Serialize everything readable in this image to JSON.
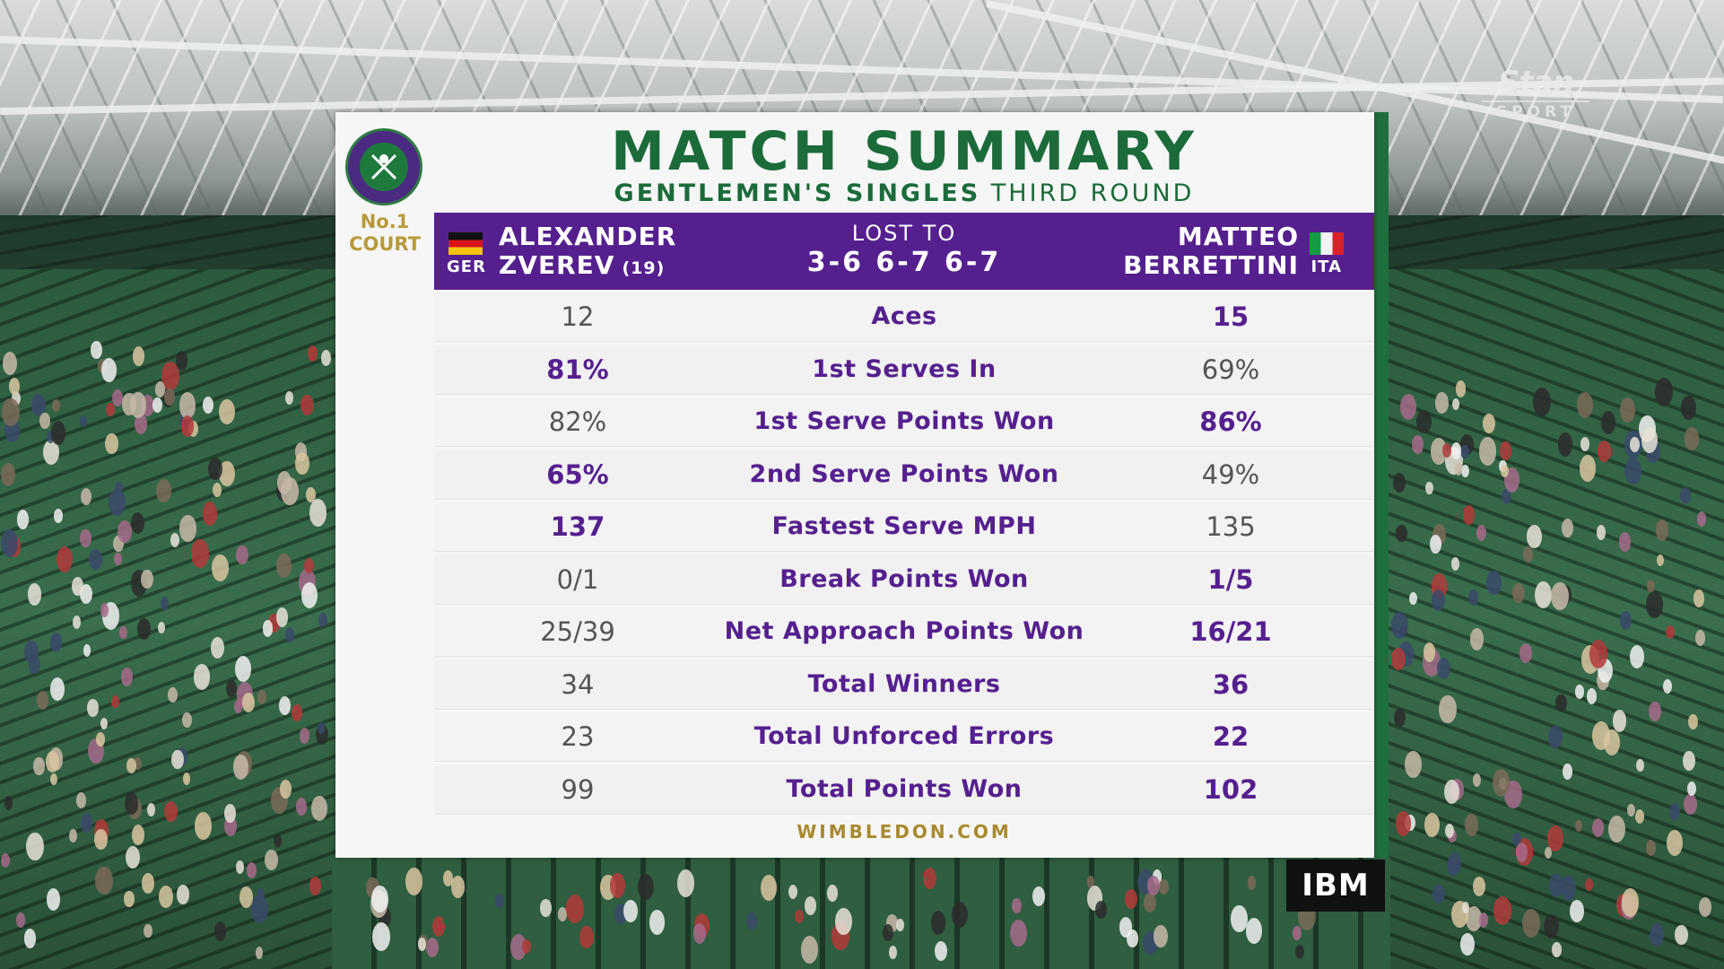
{
  "broadcaster": {
    "name": "Stan",
    "sub": "SPORT"
  },
  "sponsor": "IBM",
  "court": {
    "line1": "No.1",
    "line2": "COURT"
  },
  "title": {
    "main": "MATCH SUMMARY",
    "event": "GENTLEMEN'S SINGLES",
    "round": "THIRD ROUND"
  },
  "player1": {
    "first": "ALEXANDER",
    "last": "ZVEREV",
    "seed": "(19)",
    "country": "GER"
  },
  "player2": {
    "first": "MATTEO",
    "last": "BERRETTINI",
    "country": "ITA"
  },
  "result": {
    "label": "LOST TO",
    "score": "3-6 6-7 6-7"
  },
  "stats": [
    {
      "label": "Aces",
      "p1": "12",
      "p2": "15",
      "leader": "p2"
    },
    {
      "label": "1st Serves In",
      "p1": "81%",
      "p2": "69%",
      "leader": "p1"
    },
    {
      "label": "1st Serve Points Won",
      "p1": "82%",
      "p2": "86%",
      "leader": "p2"
    },
    {
      "label": "2nd Serve Points Won",
      "p1": "65%",
      "p2": "49%",
      "leader": "p1"
    },
    {
      "label": "Fastest Serve MPH",
      "p1": "137",
      "p2": "135",
      "leader": "p1"
    },
    {
      "label": "Break Points Won",
      "p1": "0/1",
      "p2": "1/5",
      "leader": "p2"
    },
    {
      "label": "Net Approach Points Won",
      "p1": "25/39",
      "p2": "16/21",
      "leader": "p2"
    },
    {
      "label": "Total Winners",
      "p1": "34",
      "p2": "36",
      "leader": "p2"
    },
    {
      "label": "Total Unforced Errors",
      "p1": "23",
      "p2": "22",
      "leader": "p2"
    },
    {
      "label": "Total Points Won",
      "p1": "99",
      "p2": "102",
      "leader": "p2"
    }
  ],
  "footer": "WIMBLEDON.COM",
  "colors": {
    "purple": "#55208e",
    "green": "#1b6b3b",
    "gold": "#a88a2e"
  },
  "icons": {
    "crest": "wimbledon-crest-icon",
    "flag1": "germany-flag-icon",
    "flag2": "italy-flag-icon"
  }
}
